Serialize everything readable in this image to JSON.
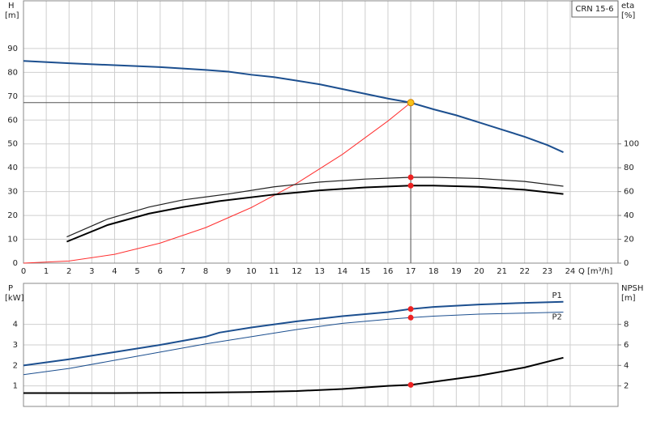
{
  "chart_data": [
    {
      "type": "line",
      "title": "CRN 15-6",
      "ylabel": "H",
      "yunit": "[m]",
      "y2label": "eta",
      "y2unit": "[%]",
      "xlabel": "Q [m³/h]",
      "xlim": [
        0,
        26.1
      ],
      "xticks": [
        0,
        1,
        2,
        3,
        4,
        5,
        6,
        7,
        8,
        9,
        10,
        11,
        12,
        13,
        14,
        15,
        16,
        17,
        18,
        19,
        20,
        21,
        22,
        23,
        24
      ],
      "ylim": [
        0,
        110
      ],
      "yticks": [
        0,
        10,
        20,
        30,
        40,
        50,
        60,
        70,
        80,
        90
      ],
      "y2lim": [
        0,
        220
      ],
      "y2ticks": [
        0,
        20,
        40,
        60,
        80,
        100
      ],
      "grid": true,
      "duty_point": {
        "x": 17,
        "y": 67.3
      },
      "duty_color": "#f7c21a",
      "crosshair_color": "#555555",
      "series": [
        {
          "color": "#1c4f8f",
          "line_width": 2,
          "x": [
            0,
            2,
            4,
            6,
            8,
            9,
            10,
            11,
            12,
            13,
            14,
            15,
            16,
            17,
            18,
            19,
            20,
            21,
            22,
            23,
            23.7
          ],
          "values": [
            84.8,
            83.8,
            83,
            82.2,
            81,
            80.3,
            79,
            78,
            76.5,
            75,
            73,
            71,
            69,
            67.3,
            64.5,
            62,
            59,
            56,
            53,
            49.5,
            46.5
          ]
        },
        {
          "color": "#ff3030",
          "line_width": 1,
          "x": [
            0,
            2,
            4,
            6,
            8,
            10,
            12,
            14,
            16,
            17
          ],
          "values": [
            0,
            0.9,
            3.7,
            8.4,
            14.9,
            23.3,
            33.5,
            45.6,
            59.6,
            67.3
          ]
        },
        {
          "color": "#222222",
          "line_width": 1.2,
          "axis": "y2",
          "marker_color": "#ee2222",
          "x": [
            1.9,
            3.7,
            5.5,
            7,
            9,
            11,
            13,
            15,
            17,
            18,
            20,
            22,
            23.7
          ],
          "values": [
            22,
            37,
            47,
            53,
            58,
            64,
            68,
            70.5,
            72,
            72,
            71,
            68.5,
            64.5
          ]
        },
        {
          "color": "#000000",
          "line_width": 2,
          "axis": "y2",
          "marker_color": "#ee2222",
          "x": [
            1.9,
            3.7,
            5.5,
            7,
            8.6,
            11,
            13,
            15,
            17,
            18,
            20,
            22,
            23.7
          ],
          "values": [
            18,
            32,
            41.5,
            47,
            52,
            57.5,
            61,
            63.5,
            65,
            65,
            64,
            61.5,
            58
          ]
        }
      ]
    },
    {
      "type": "line",
      "ylabel": "P",
      "yunit": "[kW]",
      "y2label": "NPSH",
      "y2unit": "[m]",
      "xlim": [
        0,
        26.1
      ],
      "xticks": [
        0,
        1,
        2,
        3,
        4,
        5,
        6,
        7,
        8,
        9,
        10,
        11,
        12,
        13,
        14,
        15,
        16,
        17,
        18,
        19,
        20,
        21,
        22,
        23,
        24
      ],
      "ylim": [
        0,
        6
      ],
      "yticks": [
        1,
        2,
        3,
        4
      ],
      "y2lim": [
        0,
        12
      ],
      "y2ticks": [
        2,
        4,
        6,
        8
      ],
      "grid": true,
      "series": [
        {
          "name": "P1",
          "color": "#1c4f8f",
          "line_width": 2,
          "marker_color": "#ee2222",
          "x": [
            0,
            2,
            4,
            6,
            8,
            8.6,
            10,
            12,
            14,
            16,
            17,
            18,
            20,
            22,
            23.7
          ],
          "values": [
            2.0,
            2.3,
            2.65,
            3.0,
            3.4,
            3.6,
            3.85,
            4.15,
            4.4,
            4.6,
            4.75,
            4.85,
            4.97,
            5.05,
            5.1
          ]
        },
        {
          "name": "P2",
          "color": "#1c4f8f",
          "line_width": 1,
          "marker_color": "#ee2222",
          "x": [
            0,
            2,
            4,
            6,
            8,
            10,
            12,
            14,
            16,
            17,
            18,
            20,
            22,
            23.7
          ],
          "values": [
            1.55,
            1.85,
            2.25,
            2.65,
            3.05,
            3.4,
            3.75,
            4.05,
            4.25,
            4.33,
            4.4,
            4.5,
            4.55,
            4.6
          ]
        },
        {
          "color": "#000000",
          "line_width": 2,
          "axis": "y2",
          "marker_color": "#ee2222",
          "x": [
            0,
            4,
            8,
            10,
            12,
            14,
            16,
            17,
            18,
            20,
            22,
            23.7
          ],
          "values": [
            1.3,
            1.3,
            1.35,
            1.4,
            1.5,
            1.7,
            2.0,
            2.1,
            2.4,
            3.0,
            3.8,
            4.75
          ]
        }
      ]
    }
  ]
}
